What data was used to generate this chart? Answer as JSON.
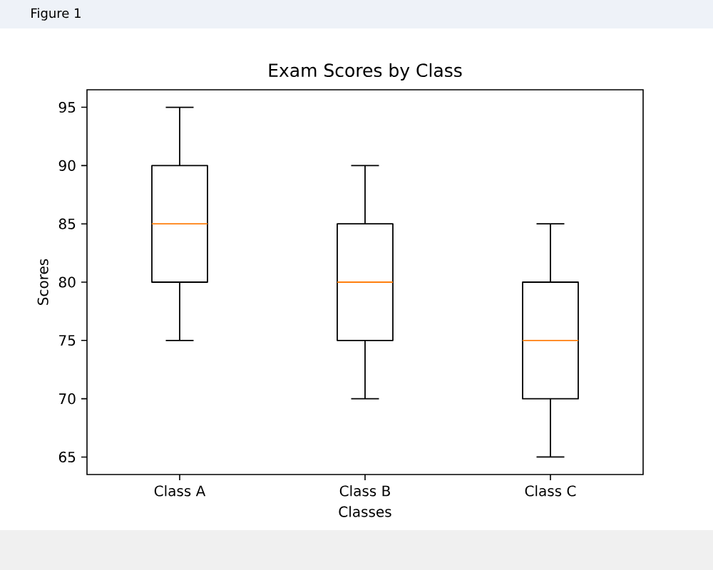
{
  "chart_data": {
    "type": "box",
    "title": "Exam Scores by Class",
    "xlabel": "Classes",
    "ylabel": "Scores",
    "categories": [
      "Class A",
      "Class B",
      "Class C"
    ],
    "boxes": [
      {
        "low": 75,
        "q1": 80,
        "median": 85,
        "q3": 90,
        "high": 95
      },
      {
        "low": 70,
        "q1": 75,
        "median": 80,
        "q3": 85,
        "high": 90
      },
      {
        "low": 65,
        "q1": 70,
        "median": 75,
        "q3": 80,
        "high": 85
      }
    ],
    "color": "#000000",
    "ylim": [
      63.5,
      96.5
    ],
    "yticks": [
      65,
      70,
      75,
      80,
      85,
      90,
      95
    ],
    "annotations": [
      "Figure 1"
    ]
  }
}
